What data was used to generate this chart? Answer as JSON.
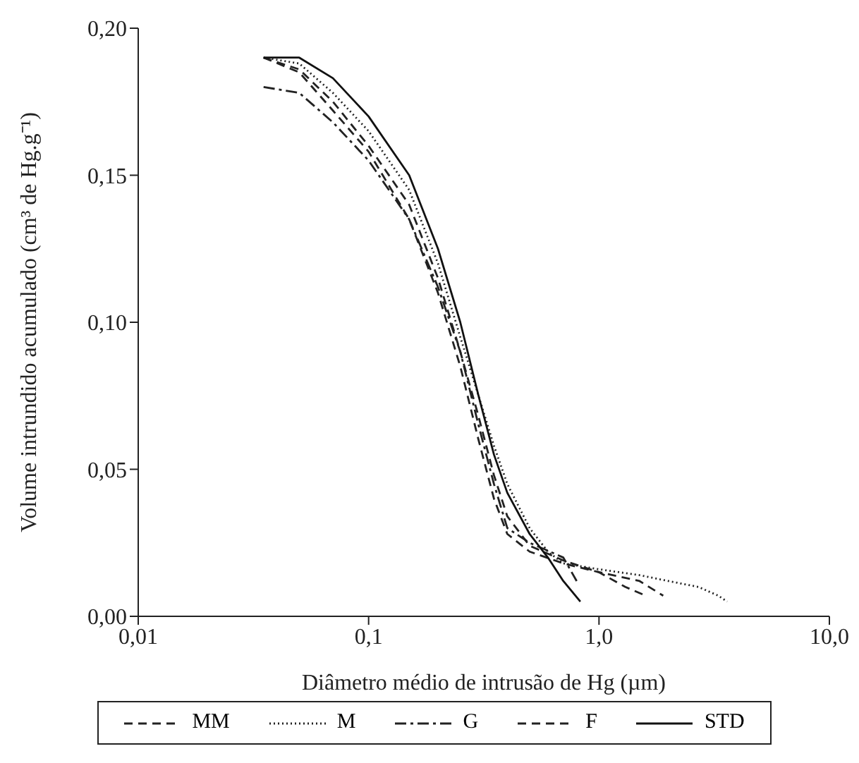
{
  "chart_data": {
    "type": "line",
    "xlabel": "Diâmetro médio de intrusão de Hg (µm)",
    "ylabel": "Volume intrundido acumulado (cm³ de Hg.g⁻¹)",
    "log": "x",
    "xlim": [
      0.01,
      10
    ],
    "xticks": [
      {
        "value": 0.01,
        "label": "0,01"
      },
      {
        "value": 0.1,
        "label": "0,1"
      },
      {
        "value": 1,
        "label": "1,0"
      },
      {
        "value": 10,
        "label": "10,0"
      }
    ],
    "ylim": [
      0,
      0.2
    ],
    "yticks": [
      {
        "value": 0,
        "label": "0,00"
      },
      {
        "value": 0.05,
        "label": "0,05"
      },
      {
        "value": 0.1,
        "label": "0,10"
      },
      {
        "value": 0.15,
        "label": "0,15"
      },
      {
        "value": 0.2,
        "label": "0,20"
      }
    ],
    "grid": false,
    "legend": "bottom",
    "marker": "none",
    "series": [
      {
        "name": "MM",
        "color": "#222222",
        "line_style": "dashed",
        "x": [
          0.035,
          0.05,
          0.07,
          0.1,
          0.15,
          0.2,
          0.25,
          0.3,
          0.35,
          0.4,
          0.5,
          0.7,
          1.0,
          1.5,
          1.9
        ],
        "values": [
          0.19,
          0.185,
          0.172,
          0.158,
          0.135,
          0.11,
          0.085,
          0.06,
          0.04,
          0.028,
          0.022,
          0.018,
          0.015,
          0.012,
          0.007
        ]
      },
      {
        "name": "M",
        "color": "#222222",
        "line_style": "dotted",
        "x": [
          0.035,
          0.05,
          0.07,
          0.1,
          0.15,
          0.2,
          0.25,
          0.3,
          0.35,
          0.4,
          0.5,
          0.6,
          0.7,
          1.0,
          1.5,
          2.0,
          2.7,
          3.3,
          3.6
        ],
        "values": [
          0.19,
          0.188,
          0.178,
          0.165,
          0.145,
          0.12,
          0.095,
          0.075,
          0.058,
          0.045,
          0.03,
          0.022,
          0.018,
          0.016,
          0.014,
          0.012,
          0.01,
          0.007,
          0.005
        ]
      },
      {
        "name": "G",
        "color": "#222222",
        "line_style": "dashdot",
        "x": [
          0.035,
          0.05,
          0.07,
          0.1,
          0.15,
          0.2,
          0.25,
          0.3,
          0.35,
          0.4,
          0.5,
          0.7,
          0.8
        ],
        "values": [
          0.18,
          0.178,
          0.168,
          0.155,
          0.135,
          0.112,
          0.09,
          0.065,
          0.045,
          0.03,
          0.025,
          0.02,
          0.012
        ]
      },
      {
        "name": "F",
        "color": "#222222",
        "line_style": "dashed",
        "x": [
          0.035,
          0.05,
          0.07,
          0.1,
          0.15,
          0.2,
          0.25,
          0.3,
          0.35,
          0.4,
          0.5,
          0.7,
          1.0,
          1.3,
          1.6
        ],
        "values": [
          0.19,
          0.186,
          0.175,
          0.16,
          0.14,
          0.115,
          0.09,
          0.068,
          0.048,
          0.034,
          0.024,
          0.019,
          0.015,
          0.01,
          0.007
        ]
      },
      {
        "name": "STD",
        "color": "#111111",
        "line_style": "solid",
        "x": [
          0.035,
          0.05,
          0.07,
          0.1,
          0.15,
          0.2,
          0.25,
          0.3,
          0.35,
          0.4,
          0.5,
          0.6,
          0.7,
          0.83
        ],
        "values": [
          0.19,
          0.19,
          0.183,
          0.17,
          0.15,
          0.125,
          0.1,
          0.075,
          0.055,
          0.042,
          0.028,
          0.02,
          0.012,
          0.005
        ]
      }
    ]
  }
}
